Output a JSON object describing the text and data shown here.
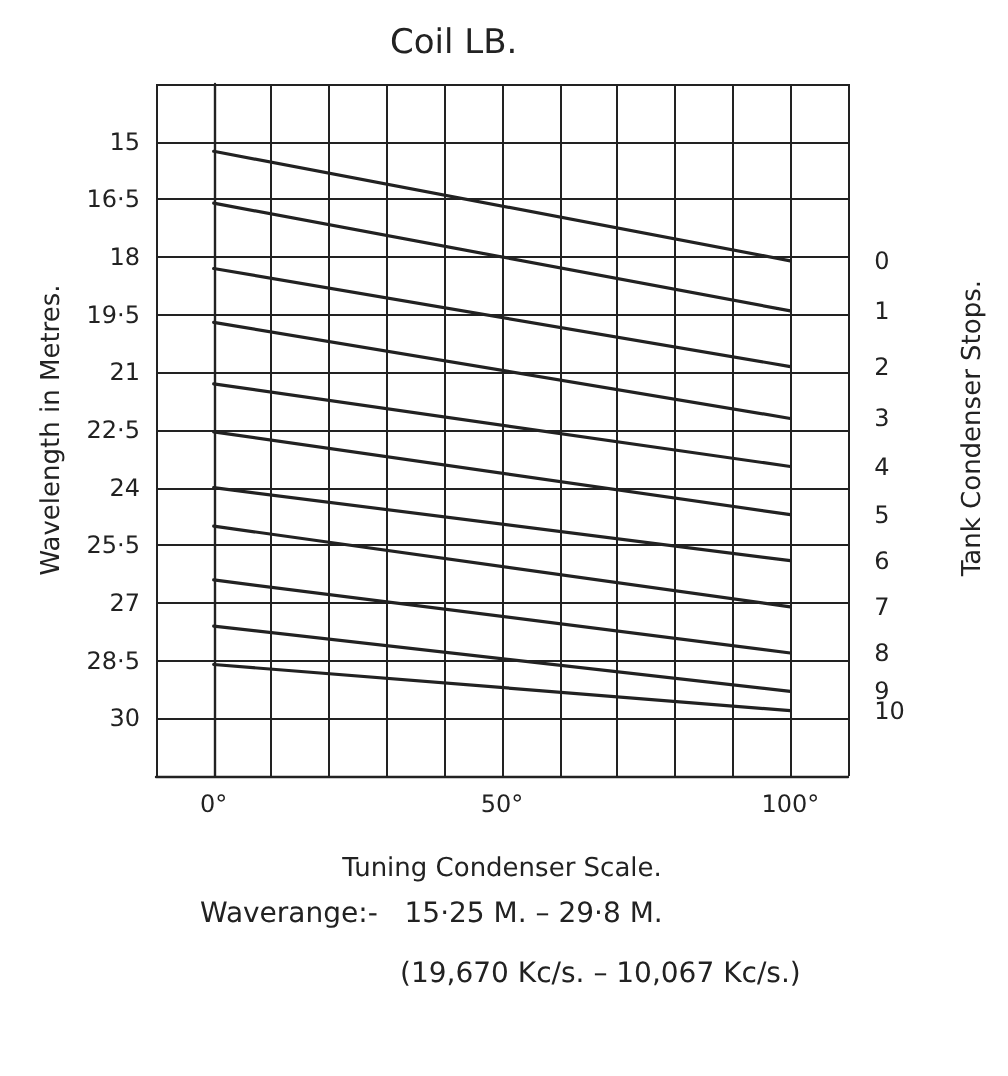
{
  "chart_data": {
    "type": "line",
    "title": "Coil LB.",
    "xlabel": "Tuning Condenser Scale.",
    "ylabel": "Wavelength in Metres.",
    "y2label": "Tank Condenser Stops.",
    "annotations": [
      "Waverange:-   15·25 M. – 29·8 M.",
      "(19,670 Kc/s. – 10,067 Kc/s.)"
    ],
    "x": [
      0,
      100
    ],
    "series": [
      {
        "name": "0",
        "color": "#222222",
        "values": [
          15.25,
          18.1
        ]
      },
      {
        "name": "1",
        "color": "#222222",
        "values": [
          16.6,
          19.4
        ]
      },
      {
        "name": "2",
        "color": "#222222",
        "values": [
          18.3,
          20.85
        ]
      },
      {
        "name": "3",
        "color": "#222222",
        "values": [
          19.7,
          22.2
        ]
      },
      {
        "name": "4",
        "color": "#222222",
        "values": [
          21.3,
          23.45
        ]
      },
      {
        "name": "5",
        "color": "#222222",
        "values": [
          22.55,
          24.7
        ]
      },
      {
        "name": "6",
        "color": "#222222",
        "values": [
          24.0,
          25.9
        ]
      },
      {
        "name": "7",
        "color": "#222222",
        "values": [
          25.0,
          27.1
        ]
      },
      {
        "name": "8",
        "color": "#222222",
        "values": [
          26.4,
          28.3
        ]
      },
      {
        "name": "9",
        "color": "#222222",
        "values": [
          27.6,
          29.3
        ]
      },
      {
        "name": "10",
        "color": "#222222",
        "values": [
          28.6,
          29.8
        ]
      }
    ],
    "xlim": [
      -10,
      110
    ],
    "xticks": [
      {
        "value": -10,
        "label": null
      },
      {
        "value": 0,
        "label": "0°"
      },
      {
        "value": 10,
        "label": null
      },
      {
        "value": 20,
        "label": null
      },
      {
        "value": 30,
        "label": null
      },
      {
        "value": 40,
        "label": null
      },
      {
        "value": 50,
        "label": "50°"
      },
      {
        "value": 60,
        "label": null
      },
      {
        "value": 70,
        "label": null
      },
      {
        "value": 80,
        "label": null
      },
      {
        "value": 90,
        "label": null
      },
      {
        "value": 100,
        "label": "100°"
      },
      {
        "value": 110,
        "label": null
      }
    ],
    "ylim": [
      31.5,
      13.5
    ],
    "yticks": [
      {
        "value": 13.5,
        "label": null
      },
      15,
      {
        "value": 16.5,
        "label": "16·5"
      },
      18,
      {
        "value": 19.5,
        "label": "19·5"
      },
      21,
      {
        "value": 22.5,
        "label": "22·5"
      },
      24,
      {
        "value": 25.5,
        "label": "25·5"
      },
      27,
      {
        "value": 28.5,
        "label": "28·5"
      },
      30,
      {
        "value": 31.5,
        "label": null
      }
    ],
    "grid": true,
    "legend": false,
    "marker": "none",
    "line_style": "solid"
  }
}
